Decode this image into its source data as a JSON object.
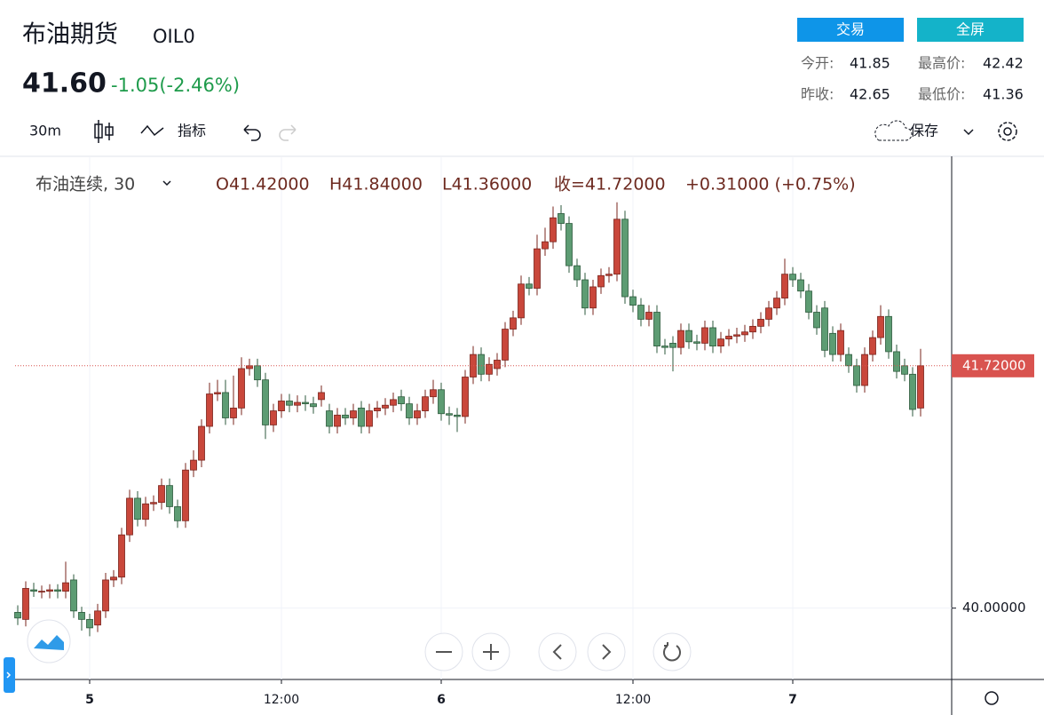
{
  "header": {
    "title": "布油期货",
    "code": "OIL0",
    "price": "41.60",
    "change": "-1.05(-2.46%)",
    "buttons": [
      "交易",
      "全屏"
    ],
    "stats": [
      {
        "label": "今开:",
        "value": "41.85"
      },
      {
        "label": "最高价:",
        "value": "42.42"
      },
      {
        "label": "昨收:",
        "value": "42.65"
      },
      {
        "label": "最低价:",
        "value": "41.36"
      }
    ]
  },
  "toolbar": {
    "interval": "30m",
    "indicators": "指标",
    "save": "保存"
  },
  "legend": {
    "symbol": "布油连续, 30",
    "open": "O41.42000",
    "high": "H41.84000",
    "low": "L41.36000",
    "close": "收=41.72000",
    "change": "+0.31000 (+0.75%)"
  },
  "chart_data": {
    "type": "candlestick",
    "categories": [
      null,
      null,
      null,
      null,
      null,
      null,
      null,
      null,
      null,
      "5",
      null,
      null,
      null,
      null,
      null,
      null,
      null,
      null,
      null,
      null,
      null,
      null,
      null,
      null,
      null,
      null,
      null,
      null,
      null,
      null,
      null,
      null,
      null,
      "12:00",
      null,
      null,
      null,
      null,
      null,
      null,
      null,
      null,
      null,
      null,
      null,
      null,
      null,
      null,
      null,
      null,
      null,
      null,
      null,
      "6",
      null,
      null,
      null,
      null,
      null,
      null,
      null,
      null,
      null,
      null,
      null,
      null,
      null,
      null,
      null,
      null,
      null,
      null,
      null,
      null,
      null,
      null,
      null,
      "12:00",
      null,
      null,
      null,
      null,
      null,
      null,
      null,
      null,
      null,
      null,
      null,
      null,
      null,
      null,
      null,
      null,
      null,
      null,
      null,
      "7",
      null,
      null,
      null,
      null,
      null,
      null,
      null,
      null,
      null,
      null,
      null,
      null,
      null,
      null,
      null,
      null
    ],
    "open": [
      39.97,
      39.92,
      40.13,
      40.12,
      40.12,
      40.13,
      40.12,
      40.2,
      39.97,
      39.92,
      39.88,
      39.98,
      40.2,
      40.22,
      40.52,
      40.78,
      40.63,
      40.74,
      40.75,
      40.87,
      40.72,
      40.62,
      40.98,
      41.05,
      41.29,
      41.52,
      41.53,
      41.35,
      41.42,
      41.7,
      41.72,
      41.62,
      41.3,
      41.4,
      41.47,
      41.44,
      41.46,
      41.45,
      41.48,
      41.4,
      41.29,
      41.37,
      41.35,
      41.42,
      41.29,
      41.4,
      41.42,
      41.44,
      41.5,
      41.45,
      41.35,
      41.4,
      41.5,
      41.55,
      41.38,
      41.37,
      41.36,
      41.64,
      41.8,
      41.66,
      41.7,
      41.76,
      41.98,
      42.06,
      42.3,
      42.27,
      42.55,
      42.6,
      42.8,
      42.73,
      42.43,
      42.33,
      42.13,
      42.28,
      42.36,
      42.37,
      42.76,
      42.21,
      42.15,
      42.05,
      42.1,
      41.86,
      41.88,
      41.85,
      41.97,
      41.89,
      41.88,
      41.99,
      41.86,
      41.91,
      41.93,
      41.94,
      41.96,
      42.0,
      42.05,
      42.13,
      42.2,
      42.37,
      42.33,
      42.25,
      42.1,
      42.13,
      41.95,
      41.8,
      41.8,
      41.72,
      41.58,
      41.8,
      41.92,
      42.07,
      41.82,
      41.72,
      41.66,
      41.42
    ],
    "high": [
      40.02,
      40.19,
      40.18,
      40.16,
      40.17,
      40.17,
      40.33,
      40.24,
      40.01,
      39.96,
      40.03,
      40.25,
      40.27,
      40.57,
      40.84,
      40.83,
      40.79,
      40.8,
      40.92,
      40.92,
      40.77,
      41.03,
      41.12,
      41.34,
      41.6,
      41.62,
      41.62,
      41.65,
      41.78,
      41.77,
      41.77,
      41.67,
      41.45,
      41.52,
      41.52,
      41.51,
      41.51,
      41.5,
      41.58,
      41.45,
      41.42,
      41.42,
      41.45,
      41.47,
      41.45,
      41.47,
      41.49,
      41.53,
      41.55,
      41.5,
      41.45,
      41.55,
      41.62,
      41.6,
      41.43,
      41.42,
      41.69,
      41.86,
      41.85,
      41.78,
      41.81,
      42.03,
      42.11,
      42.36,
      42.35,
      42.65,
      42.7,
      42.85,
      42.86,
      42.78,
      42.48,
      42.38,
      42.33,
      42.41,
      42.42,
      42.88,
      42.82,
      42.26,
      42.2,
      42.15,
      42.15,
      41.91,
      41.93,
      42.02,
      42.02,
      41.94,
      42.04,
      42.04,
      41.96,
      41.98,
      41.99,
      42.01,
      42.05,
      42.1,
      42.18,
      42.25,
      42.48,
      42.42,
      42.38,
      42.3,
      42.15,
      42.18,
      42.0,
      42.02,
      41.85,
      41.77,
      41.85,
      41.97,
      42.15,
      42.12,
      41.87,
      41.77,
      41.71,
      41.84
    ],
    "low": [
      39.88,
      39.87,
      40.08,
      40.07,
      40.07,
      40.07,
      40.07,
      39.93,
      39.84,
      39.8,
      39.83,
      39.93,
      40.15,
      40.17,
      40.47,
      40.58,
      40.58,
      40.69,
      40.7,
      40.67,
      40.57,
      40.57,
      40.93,
      41.0,
      41.24,
      41.47,
      41.3,
      41.3,
      41.37,
      41.65,
      41.57,
      41.2,
      41.25,
      41.35,
      41.39,
      41.39,
      41.4,
      41.38,
      41.43,
      41.24,
      41.24,
      41.3,
      41.3,
      41.24,
      41.24,
      41.35,
      41.37,
      41.39,
      41.4,
      41.3,
      41.3,
      41.35,
      41.45,
      41.33,
      41.3,
      41.25,
      41.31,
      41.59,
      41.61,
      41.61,
      41.65,
      41.71,
      41.93,
      42.01,
      42.22,
      42.22,
      42.5,
      42.55,
      42.68,
      42.38,
      42.28,
      42.08,
      42.08,
      42.23,
      42.31,
      42.32,
      42.16,
      42.1,
      42.0,
      42.0,
      41.81,
      41.8,
      41.68,
      41.8,
      41.84,
      41.83,
      41.83,
      41.81,
      41.81,
      41.86,
      41.88,
      41.89,
      41.91,
      41.95,
      42.0,
      42.08,
      42.15,
      42.28,
      42.2,
      42.05,
      41.94,
      41.78,
      41.75,
      41.75,
      41.67,
      41.53,
      41.53,
      41.75,
      41.87,
      41.77,
      41.63,
      41.61,
      41.36,
      41.36
    ],
    "close": [
      39.93,
      40.14,
      40.12,
      40.12,
      40.13,
      40.12,
      40.18,
      39.98,
      39.92,
      39.86,
      39.98,
      40.2,
      40.22,
      40.52,
      40.78,
      40.63,
      40.74,
      40.75,
      40.87,
      40.72,
      40.62,
      40.98,
      41.05,
      41.29,
      41.52,
      41.53,
      41.35,
      41.42,
      41.7,
      41.72,
      41.62,
      41.3,
      41.4,
      41.47,
      41.44,
      41.46,
      41.45,
      41.43,
      41.53,
      41.29,
      41.37,
      41.35,
      41.4,
      41.29,
      41.4,
      41.42,
      41.44,
      41.48,
      41.45,
      41.35,
      41.4,
      41.5,
      41.55,
      41.38,
      41.37,
      41.36,
      41.64,
      41.8,
      41.66,
      41.73,
      41.76,
      41.98,
      42.06,
      42.3,
      42.27,
      42.55,
      42.6,
      42.77,
      42.73,
      42.43,
      42.33,
      42.13,
      42.28,
      42.36,
      42.37,
      42.76,
      42.21,
      42.15,
      42.05,
      42.1,
      41.86,
      41.85,
      41.85,
      41.97,
      41.89,
      41.88,
      41.99,
      41.86,
      41.91,
      41.93,
      41.94,
      41.96,
      42.0,
      42.05,
      42.13,
      42.2,
      42.37,
      42.33,
      42.25,
      42.1,
      41.99,
      41.83,
      41.8,
      41.97,
      41.72,
      41.58,
      41.8,
      41.92,
      42.07,
      41.82,
      41.68,
      41.66,
      41.41,
      41.72
    ],
    "up_color": "#c9473b",
    "down_color": "#5d9c73",
    "ylim": [
      39.5,
      43.2
    ],
    "yticks": [
      {
        "value": 40,
        "label": "40.00000"
      }
    ],
    "last_price": {
      "value": 41.72,
      "label": "41.72000"
    },
    "grid": true
  }
}
